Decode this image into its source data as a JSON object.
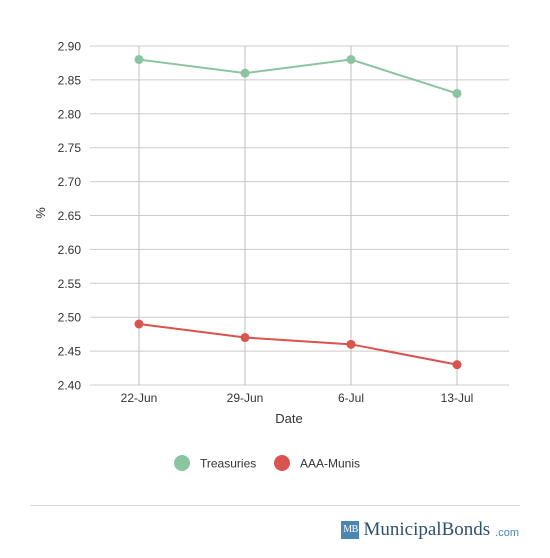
{
  "chart_data": {
    "type": "line",
    "categories": [
      "22-Jun",
      "29-Jun",
      "6-Jul",
      "13-Jul"
    ],
    "series": [
      {
        "name": "Treasuries",
        "color": "#8bc4a0",
        "values": [
          2.88,
          2.86,
          2.88,
          2.83
        ]
      },
      {
        "name": "AAA-Munis",
        "color": "#d9534f",
        "values": [
          2.49,
          2.47,
          2.46,
          2.43
        ]
      }
    ],
    "xlabel": "Date",
    "ylabel": "%",
    "ylim": [
      2.4,
      2.9
    ],
    "yticks": [
      "2.90",
      "2.85",
      "2.80",
      "2.75",
      "2.70",
      "2.65",
      "2.60",
      "2.55",
      "2.50",
      "2.45",
      "2.40"
    ],
    "grid": true,
    "legend_position": "bottom-center"
  },
  "branding": {
    "logo_text": "MB",
    "name": "MunicipalBonds",
    "suffix": ".com"
  }
}
